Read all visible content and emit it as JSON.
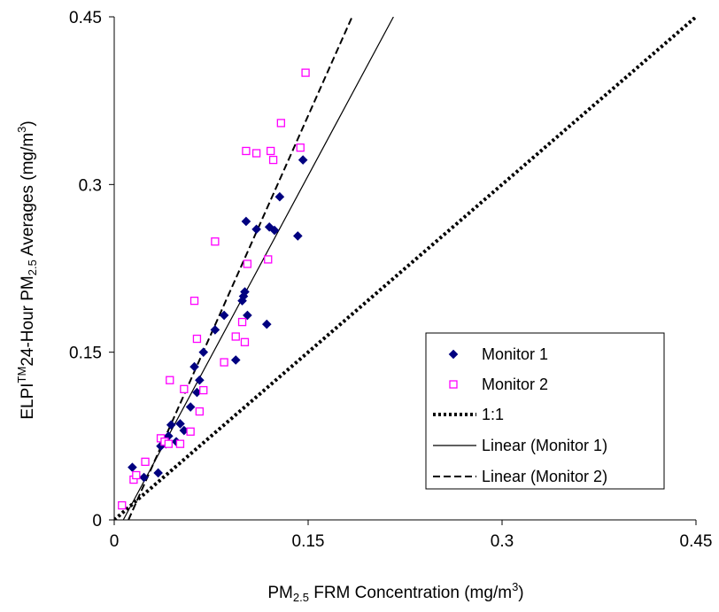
{
  "chart_data": {
    "type": "scatter",
    "xlabel": {
      "pre": "PM",
      "sub": "2.5",
      "mid": " FRM Concentration (mg/m",
      "sup": "3",
      "post": ")"
    },
    "ylabel": {
      "pre": "ELPI",
      "sup1": "TM",
      "mid": "24-Hour PM",
      "sub": "2.5",
      "mid2": " Averages (mg/m",
      "sup2": "3",
      "post": ")"
    },
    "xlim": [
      0,
      0.45
    ],
    "ylim": [
      0,
      0.45
    ],
    "xticks": [
      0,
      0.15,
      0.3,
      0.45
    ],
    "yticks": [
      0,
      0.15,
      0.3,
      0.45
    ],
    "xtick_labels": [
      "0",
      "0.15",
      "0.3",
      "0.45"
    ],
    "ytick_labels": [
      "0",
      "0.15",
      "0.3",
      "0.45"
    ],
    "grid": false,
    "legend_position": "bottom-right",
    "series": [
      {
        "name": "Monitor 1",
        "marker": "diamond",
        "color": "#000080",
        "points": [
          [
            0.014,
            0.047
          ],
          [
            0.023,
            0.038
          ],
          [
            0.034,
            0.042
          ],
          [
            0.036,
            0.066
          ],
          [
            0.04,
            0.068
          ],
          [
            0.042,
            0.075
          ],
          [
            0.044,
            0.085
          ],
          [
            0.048,
            0.07
          ],
          [
            0.051,
            0.086
          ],
          [
            0.054,
            0.08
          ],
          [
            0.059,
            0.101
          ],
          [
            0.062,
            0.137
          ],
          [
            0.064,
            0.114
          ],
          [
            0.066,
            0.125
          ],
          [
            0.069,
            0.15
          ],
          [
            0.078,
            0.17
          ],
          [
            0.085,
            0.183
          ],
          [
            0.094,
            0.143
          ],
          [
            0.099,
            0.196
          ],
          [
            0.1,
            0.2
          ],
          [
            0.101,
            0.204
          ],
          [
            0.102,
            0.267
          ],
          [
            0.103,
            0.183
          ],
          [
            0.11,
            0.26
          ],
          [
            0.118,
            0.175
          ],
          [
            0.12,
            0.262
          ],
          [
            0.124,
            0.259
          ],
          [
            0.128,
            0.289
          ],
          [
            0.142,
            0.254
          ],
          [
            0.146,
            0.322
          ]
        ]
      },
      {
        "name": "Monitor 2",
        "marker": "square",
        "color": "#FF00FF",
        "points": [
          [
            0.006,
            0.013
          ],
          [
            0.015,
            0.036
          ],
          [
            0.017,
            0.04
          ],
          [
            0.024,
            0.052
          ],
          [
            0.036,
            0.073
          ],
          [
            0.039,
            0.07
          ],
          [
            0.042,
            0.068
          ],
          [
            0.043,
            0.125
          ],
          [
            0.051,
            0.068
          ],
          [
            0.054,
            0.117
          ],
          [
            0.059,
            0.079
          ],
          [
            0.062,
            0.196
          ],
          [
            0.064,
            0.162
          ],
          [
            0.066,
            0.097
          ],
          [
            0.069,
            0.116
          ],
          [
            0.078,
            0.249
          ],
          [
            0.085,
            0.141
          ],
          [
            0.094,
            0.164
          ],
          [
            0.099,
            0.177
          ],
          [
            0.101,
            0.159
          ],
          [
            0.102,
            0.33
          ],
          [
            0.103,
            0.229
          ],
          [
            0.11,
            0.328
          ],
          [
            0.119,
            0.233
          ],
          [
            0.121,
            0.33
          ],
          [
            0.123,
            0.322
          ],
          [
            0.129,
            0.355
          ],
          [
            0.144,
            0.333
          ],
          [
            0.148,
            0.4
          ]
        ]
      }
    ],
    "lines": [
      {
        "name": "1:1",
        "style": "dotted",
        "x": [
          0,
          0.45
        ],
        "y": [
          0,
          0.45
        ]
      },
      {
        "name": "Linear (Monitor 1)",
        "style": "solid",
        "x": [
          0.007,
          0.216
        ],
        "y": [
          0,
          0.45
        ]
      },
      {
        "name": "Linear (Monitor 2)",
        "style": "dashed",
        "x": [
          0.011,
          0.184
        ],
        "y": [
          0,
          0.45
        ]
      }
    ],
    "legend": [
      "Monitor 1",
      "Monitor 2",
      "1:1",
      "Linear (Monitor 1)",
      "Linear (Monitor 2)"
    ]
  }
}
